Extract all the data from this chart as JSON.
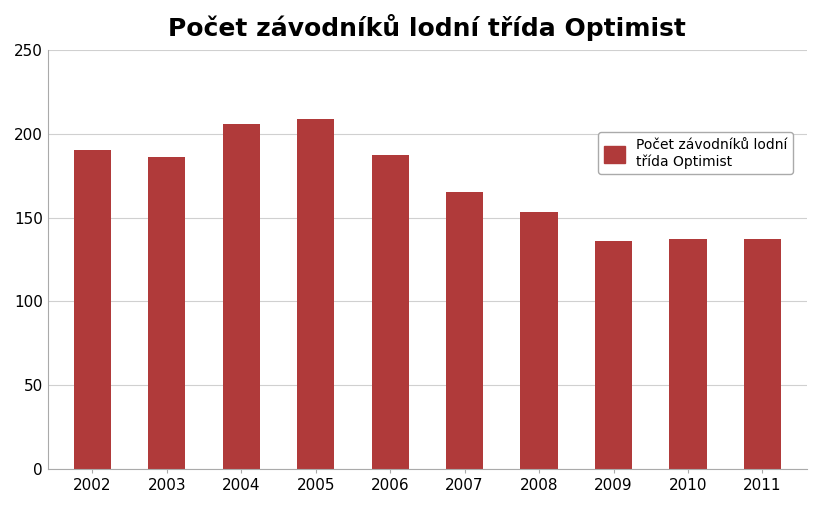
{
  "years": [
    2002,
    2003,
    2004,
    2005,
    2006,
    2007,
    2008,
    2009,
    2010,
    2011
  ],
  "values": [
    190,
    186,
    206,
    209,
    187,
    165,
    153,
    136,
    137,
    137
  ],
  "bar_color": "#b03a3a",
  "title": "Počet závodníků lodní třída Optimist",
  "legend_label": "Počet závodníků lodní\ntřída Optimist",
  "ylim": [
    0,
    250
  ],
  "yticks": [
    0,
    50,
    100,
    150,
    200,
    250
  ],
  "background_color": "#ffffff",
  "grid_color": "#d0d0d0",
  "title_fontsize": 18,
  "tick_fontsize": 11,
  "legend_fontsize": 10,
  "bar_width": 0.5,
  "figwidth": 8.21,
  "figheight": 5.07,
  "dpi": 100
}
